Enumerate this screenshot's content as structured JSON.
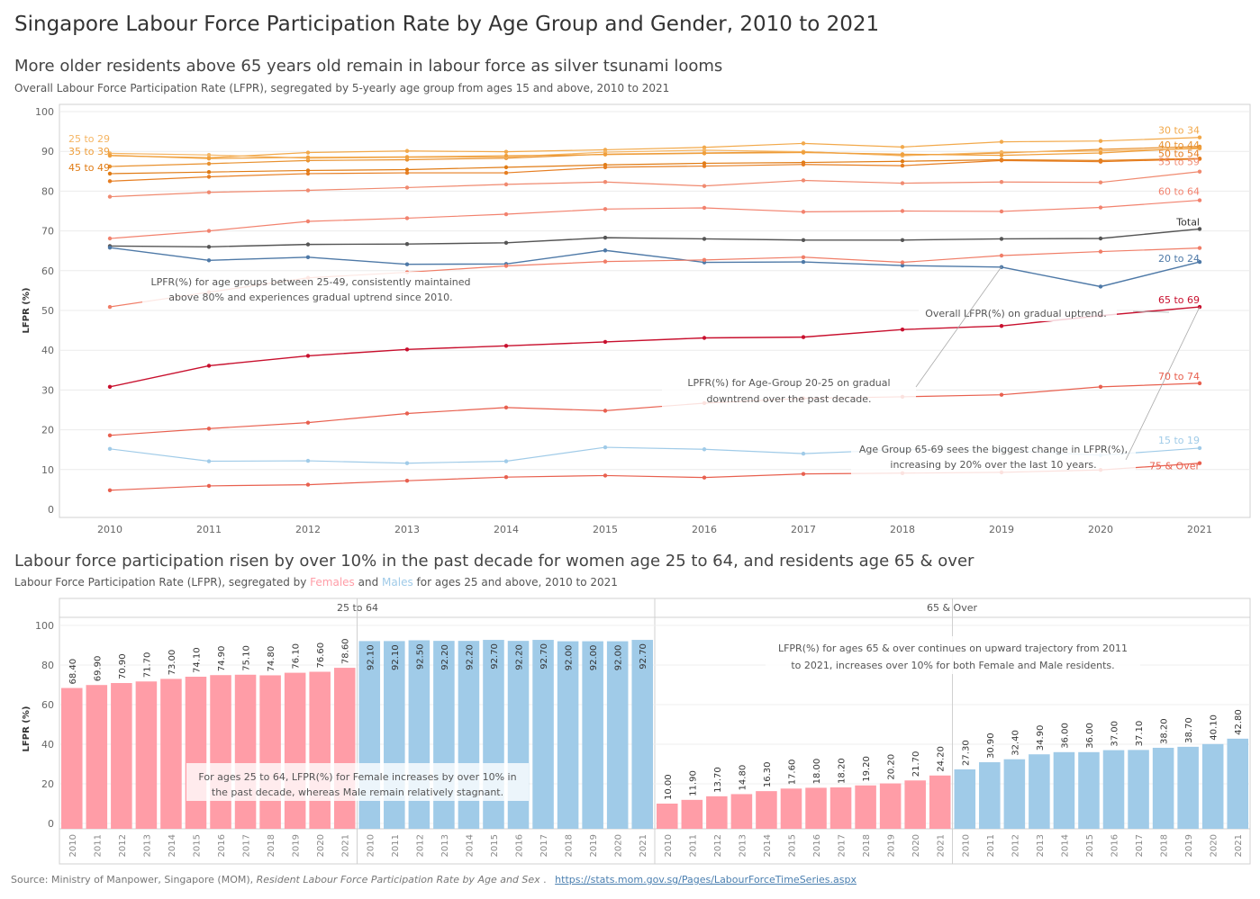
{
  "title": "Singapore Labour Force Participation Rate by Age Group and Gender, 2010 to 2021",
  "top_section": {
    "title": "More older residents above 65 years old remain in labour force as silver tsunami looms",
    "subtitle": "Overall Labour Force Participation Rate (LFPR), segregated by 5-yearly age group from ages 15 and above, 2010 to 2021"
  },
  "bottom_section": {
    "title": "Labour force participation risen by over 10% in the past decade for women age 25 to 64, and residents age 65 & over",
    "subtitle_prefix": "Labour Force Participation Rate (LFPR), segregated by ",
    "subtitle_females": "Females",
    "subtitle_and": " and ",
    "subtitle_males": "Males",
    "subtitle_suffix": " for ages 25 and above, 2010 to 2021"
  },
  "source": {
    "prefix": "Source: Ministry of Manpower, Singapore (MOM), ",
    "publication": "Resident Labour Force Participation Rate by Age and Sex",
    "separator": " . ",
    "link": "https://stats.mom.gov.sg/Pages/LabourForceTimeSeries.aspx"
  },
  "colors": {
    "females": "#ff9da7",
    "males": "#a0cbe8",
    "total": "#555555",
    "age_20_24": "#4e79a7",
    "age_65_69": "#c8102e"
  },
  "chart_data": [
    {
      "type": "line",
      "ylabel": "LFPR (%)",
      "ylim": [
        0,
        100
      ],
      "yticks": [
        0,
        10,
        20,
        30,
        40,
        50,
        60,
        70,
        80,
        90,
        100
      ],
      "x": [
        "2010",
        "2011",
        "2012",
        "2013",
        "2014",
        "2015",
        "2016",
        "2017",
        "2018",
        "2019",
        "2020",
        "2021"
      ],
      "grid": true,
      "series": [
        {
          "name": "30 to 34",
          "color": "#f2a94b",
          "label_side": "right",
          "values": [
            88.9,
            88.4,
            89.7,
            90.1,
            89.9,
            90.4,
            91.0,
            92.0,
            91.1,
            92.4,
            92.6,
            93.5
          ]
        },
        {
          "name": "40 to 44",
          "color": "#e8912f",
          "label_side": "right",
          "values": [
            86.2,
            86.9,
            87.7,
            87.9,
            88.3,
            89.3,
            89.6,
            89.9,
            89.0,
            89.6,
            90.5,
            91.2
          ]
        },
        {
          "name": "25 to 29",
          "color": "#f5b563",
          "label_side": "left",
          "values": [
            89.5,
            89.1,
            88.3,
            88.5,
            88.6,
            89.8,
            90.3,
            89.9,
            88.9,
            89.8,
            90.1,
            90.7
          ]
        },
        {
          "name": "35 to 39",
          "color": "#ef9f3c",
          "label_side": "left",
          "values": [
            89.0,
            88.2,
            88.5,
            88.6,
            88.9,
            89.2,
            89.5,
            89.7,
            89.3,
            89.0,
            89.6,
            90.9
          ]
        },
        {
          "name": "45 to 49",
          "color": "#e07b14",
          "label_side": "left",
          "values": [
            84.4,
            84.8,
            85.2,
            85.4,
            86.0,
            86.6,
            87.0,
            87.2,
            87.5,
            87.9,
            87.7,
            88.2
          ]
        },
        {
          "name": "50 to 54",
          "color": "#e67e22",
          "label_side": "right",
          "values": [
            82.5,
            83.6,
            84.4,
            84.6,
            84.6,
            86.0,
            86.3,
            86.7,
            86.4,
            87.7,
            87.4,
            88.1
          ]
        },
        {
          "name": "55 to 59",
          "color": "#f08a70",
          "label_side": "right",
          "values": [
            78.6,
            79.7,
            80.2,
            80.9,
            81.7,
            82.3,
            81.3,
            82.7,
            82.0,
            82.3,
            82.2,
            84.9
          ]
        },
        {
          "name": "60 to 64",
          "color": "#f2826e",
          "label_side": "right",
          "values": [
            68.1,
            70.0,
            72.4,
            73.2,
            74.2,
            75.5,
            75.8,
            74.8,
            75.0,
            74.9,
            75.9,
            77.7
          ]
        },
        {
          "name": "Total",
          "color": "#555555",
          "label_side": "right",
          "values": [
            66.2,
            66.0,
            66.6,
            66.7,
            67.0,
            68.3,
            68.0,
            67.7,
            67.7,
            68.0,
            68.1,
            70.5
          ]
        },
        {
          "name": "20 to 24",
          "color": "#4e79a7",
          "label_side": "right",
          "values": [
            65.8,
            62.6,
            63.4,
            61.6,
            61.7,
            65.1,
            62.1,
            62.2,
            61.3,
            60.9,
            56.0,
            62.2
          ]
        },
        {
          "name": "",
          "color": "#f07d67",
          "label_side": "none",
          "values": [
            50.9,
            54.6,
            58.2,
            59.6,
            61.2,
            62.3,
            62.7,
            63.4,
            62.1,
            63.8,
            64.8,
            65.7
          ]
        },
        {
          "name": "65 to 69",
          "color": "#c8102e",
          "label_side": "right",
          "values": [
            30.8,
            36.1,
            38.6,
            40.2,
            41.1,
            42.1,
            43.1,
            43.3,
            45.2,
            46.1,
            48.7,
            50.9
          ]
        },
        {
          "name": "70 to 74",
          "color": "#e8604f",
          "label_side": "right",
          "values": [
            18.6,
            20.3,
            21.8,
            24.1,
            25.6,
            24.8,
            26.7,
            27.9,
            28.3,
            28.8,
            30.8,
            31.7
          ]
        },
        {
          "name": "15 to 19",
          "color": "#a0cbe8",
          "label_side": "right",
          "values": [
            15.2,
            12.1,
            12.2,
            11.6,
            12.1,
            15.6,
            15.1,
            14.0,
            15.0,
            14.9,
            13.6,
            15.4
          ]
        },
        {
          "name": "75 & Over",
          "color": "#e8604f",
          "label_side": "right",
          "values": [
            4.8,
            5.9,
            6.2,
            7.2,
            8.1,
            8.5,
            8.0,
            8.9,
            9.1,
            9.3,
            9.9,
            11.6
          ]
        }
      ],
      "annotations": [
        "LPFR(%) for age groups between 25-49, consistently maintained above 80% and experiences gradual uptrend since 2010.",
        "Overall LFPR(%) on gradual uptrend.",
        "LPFR(%) for Age-Group 20-25 on gradual downtrend over the past decade.",
        "Age Group 65-69 sees the biggest change in LFPR(%), increasing by 20% over the last 10 years."
      ]
    },
    {
      "type": "bar",
      "ylabel": "LFPR (%)",
      "ylim": [
        0,
        100
      ],
      "yticks": [
        0,
        20,
        40,
        60,
        80,
        100
      ],
      "categories": [
        "2010",
        "2011",
        "2012",
        "2013",
        "2014",
        "2015",
        "2016",
        "2017",
        "2018",
        "2019",
        "2020",
        "2021"
      ],
      "panels": [
        {
          "title": "25 to 64",
          "series": [
            {
              "name": "Females",
              "color": "#ff9da7",
              "values": [
                68.4,
                69.9,
                70.9,
                71.7,
                73.0,
                74.1,
                74.9,
                75.1,
                74.8,
                76.1,
                76.6,
                78.6
              ],
              "labels": [
                "68.40",
                "69.90",
                "70.90",
                "71.70",
                "73.00",
                "74.10",
                "74.90",
                "75.10",
                "74.80",
                "76.10",
                "76.60",
                "78.60"
              ]
            },
            {
              "name": "Males",
              "color": "#a0cbe8",
              "values": [
                92.1,
                92.1,
                92.5,
                92.2,
                92.2,
                92.7,
                92.2,
                92.7,
                92.0,
                92.0,
                92.0,
                92.7
              ],
              "labels": [
                "92.10",
                "92.10",
                "92.50",
                "92.20",
                "92.20",
                "92.70",
                "92.20",
                "92.70",
                "92.00",
                "92.00",
                "92.00",
                "92.70"
              ]
            }
          ],
          "annotation": "For ages 25 to 64, LFPR(%) for Female increases by over 10% in the past decade, whereas Male remain relatively stagnant."
        },
        {
          "title": "65 & Over",
          "series": [
            {
              "name": "Females",
              "color": "#ff9da7",
              "values": [
                10.0,
                11.9,
                13.7,
                14.8,
                16.3,
                17.6,
                18.0,
                18.2,
                19.2,
                20.2,
                21.7,
                24.2
              ],
              "labels": [
                "10.00",
                "11.90",
                "13.70",
                "14.80",
                "16.30",
                "17.60",
                "18.00",
                "18.20",
                "19.20",
                "20.20",
                "21.70",
                "24.20"
              ]
            },
            {
              "name": "Males",
              "color": "#a0cbe8",
              "values": [
                27.3,
                30.9,
                32.4,
                34.9,
                36.0,
                36.0,
                37.0,
                37.1,
                38.2,
                38.7,
                40.1,
                42.8
              ],
              "labels": [
                "27.30",
                "30.90",
                "32.40",
                "34.90",
                "36.00",
                "36.00",
                "37.00",
                "37.10",
                "38.20",
                "38.70",
                "40.10",
                "42.80"
              ]
            }
          ],
          "annotation": "LFPR(%) for ages 65 & over continues on upward trajectory from 2011 to 2021, increases over 10% for both Female and Male residents."
        }
      ]
    }
  ]
}
